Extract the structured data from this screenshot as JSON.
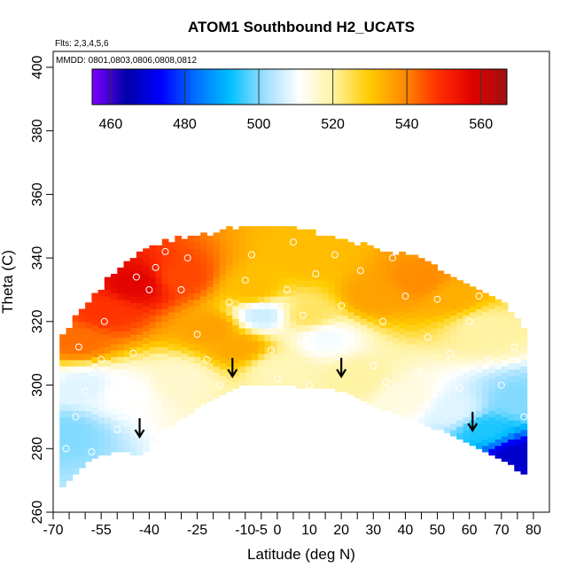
{
  "chart_data": {
    "type": "heatmap",
    "title": "ATOM1 Southbound H2_UCATS",
    "xlabel": "Latitude (deg N)",
    "ylabel": "Theta (C)",
    "xlim": [
      -70,
      85
    ],
    "ylim": [
      260,
      405
    ],
    "x_ticks_major": [
      -70,
      -55,
      -40,
      -25,
      -10,
      -5,
      0,
      10,
      20,
      30,
      40,
      50,
      60,
      70,
      80
    ],
    "x_ticks_minor": [
      -65,
      -60,
      -50,
      -45,
      -35,
      -30,
      -20,
      -15,
      5,
      15,
      25,
      35,
      45,
      55,
      65,
      75
    ],
    "y_ticks": [
      260,
      280,
      300,
      320,
      340,
      360,
      380,
      400
    ],
    "notes": {
      "flights": "Flts: 2,3,4,5,6",
      "dates": "MMDD: 0801,0803,0806,0808,0812"
    },
    "colorbar": {
      "min": 455,
      "max": 567,
      "ticks": [
        460,
        480,
        500,
        520,
        540,
        560
      ],
      "colors": [
        "#7f00ff",
        "#0000a8",
        "#0000ff",
        "#0070ff",
        "#00c0ff",
        "#9fe0ff",
        "#ffffff",
        "#fff2a0",
        "#ffcc00",
        "#ff8c00",
        "#ff3000",
        "#e00000",
        "#a01010"
      ]
    },
    "boundary_bottom": [
      [
        -68,
        267
      ],
      [
        -64,
        272
      ],
      [
        -58,
        277
      ],
      [
        -52,
        279
      ],
      [
        -46,
        279
      ],
      [
        -42,
        278
      ],
      [
        -38,
        284
      ],
      [
        -30,
        290
      ],
      [
        -22,
        295
      ],
      [
        -16,
        298
      ],
      [
        -12,
        300
      ],
      [
        -6,
        301
      ],
      [
        0,
        300
      ],
      [
        6,
        300
      ],
      [
        12,
        299.5
      ],
      [
        18,
        299
      ],
      [
        24,
        297
      ],
      [
        30,
        294
      ],
      [
        38,
        291
      ],
      [
        46,
        288
      ],
      [
        54,
        285
      ],
      [
        62,
        281
      ],
      [
        70,
        277
      ],
      [
        78,
        272
      ]
    ],
    "boundary_top": [
      [
        -68,
        313
      ],
      [
        -64,
        319
      ],
      [
        -60,
        324
      ],
      [
        -55,
        330
      ],
      [
        -50,
        336
      ],
      [
        -44,
        340
      ],
      [
        -36,
        344
      ],
      [
        -28,
        346
      ],
      [
        -20,
        347
      ],
      [
        -12,
        349
      ],
      [
        -4,
        350
      ],
      [
        4,
        349
      ],
      [
        12,
        347
      ],
      [
        20,
        345
      ],
      [
        28,
        343
      ],
      [
        36,
        341
      ],
      [
        44,
        339
      ],
      [
        52,
        335
      ],
      [
        60,
        331
      ],
      [
        68,
        327
      ],
      [
        74,
        322
      ],
      [
        78,
        316
      ]
    ],
    "field_anchors": [
      {
        "x": -44,
        "y": 332,
        "v": 557
      },
      {
        "x": -54,
        "y": 323,
        "v": 548
      },
      {
        "x": -62,
        "y": 314,
        "v": 542
      },
      {
        "x": -30,
        "y": 334,
        "v": 546
      },
      {
        "x": -20,
        "y": 318,
        "v": 536
      },
      {
        "x": -12,
        "y": 312,
        "v": 535
      },
      {
        "x": -8,
        "y": 330,
        "v": 532
      },
      {
        "x": 10,
        "y": 322,
        "v": 524
      },
      {
        "x": 10,
        "y": 340,
        "v": 532
      },
      {
        "x": 30,
        "y": 328,
        "v": 536
      },
      {
        "x": 45,
        "y": 333,
        "v": 539
      },
      {
        "x": 55,
        "y": 328,
        "v": 534
      },
      {
        "x": 65,
        "y": 318,
        "v": 520
      },
      {
        "x": -60,
        "y": 300,
        "v": 508
      },
      {
        "x": -48,
        "y": 298,
        "v": 511
      },
      {
        "x": -30,
        "y": 302,
        "v": 516
      },
      {
        "x": 0,
        "y": 305,
        "v": 518
      },
      {
        "x": 25,
        "y": 302,
        "v": 520
      },
      {
        "x": 40,
        "y": 296,
        "v": 514
      },
      {
        "x": 55,
        "y": 292,
        "v": 508
      },
      {
        "x": 65,
        "y": 286,
        "v": 494
      },
      {
        "x": 75,
        "y": 278,
        "v": 468
      },
      {
        "x": 76,
        "y": 295,
        "v": 500
      },
      {
        "x": -66,
        "y": 285,
        "v": 500
      },
      {
        "x": -5,
        "y": 322,
        "v": 506
      },
      {
        "x": 15,
        "y": 315,
        "v": 510
      }
    ],
    "sample_points": [
      [
        -66,
        280
      ],
      [
        -63,
        290
      ],
      [
        -60,
        298
      ],
      [
        -58,
        304
      ],
      [
        -55,
        308
      ],
      [
        -52,
        296
      ],
      [
        -50,
        286
      ],
      [
        -48,
        302
      ],
      [
        -45,
        310
      ],
      [
        -42,
        296
      ],
      [
        -40,
        330
      ],
      [
        -38,
        337
      ],
      [
        -35,
        342
      ],
      [
        -30,
        330
      ],
      [
        -28,
        340
      ],
      [
        -25,
        316
      ],
      [
        -22,
        308
      ],
      [
        -18,
        300
      ],
      [
        -15,
        326
      ],
      [
        -10,
        333
      ],
      [
        -8,
        341
      ],
      [
        -5,
        325
      ],
      [
        -2,
        311
      ],
      [
        0,
        302
      ],
      [
        3,
        330
      ],
      [
        5,
        345
      ],
      [
        8,
        322
      ],
      [
        10,
        300
      ],
      [
        12,
        335
      ],
      [
        15,
        313
      ],
      [
        18,
        341
      ],
      [
        20,
        325
      ],
      [
        23,
        316
      ],
      [
        26,
        336
      ],
      [
        30,
        306
      ],
      [
        33,
        320
      ],
      [
        36,
        340
      ],
      [
        40,
        328
      ],
      [
        44,
        304
      ],
      [
        47,
        315
      ],
      [
        50,
        327
      ],
      [
        54,
        310
      ],
      [
        57,
        299
      ],
      [
        60,
        320
      ],
      [
        63,
        328
      ],
      [
        66,
        308
      ],
      [
        70,
        300
      ],
      [
        74,
        312
      ],
      [
        77,
        290
      ],
      [
        -44,
        334
      ],
      [
        -54,
        320
      ],
      [
        -62,
        312
      ],
      [
        34,
        301
      ],
      [
        48,
        293
      ],
      [
        -58,
        279
      ]
    ],
    "arrows": [
      [
        -43,
        284
      ],
      [
        -14,
        303
      ],
      [
        20,
        303
      ],
      [
        61,
        286
      ]
    ]
  }
}
